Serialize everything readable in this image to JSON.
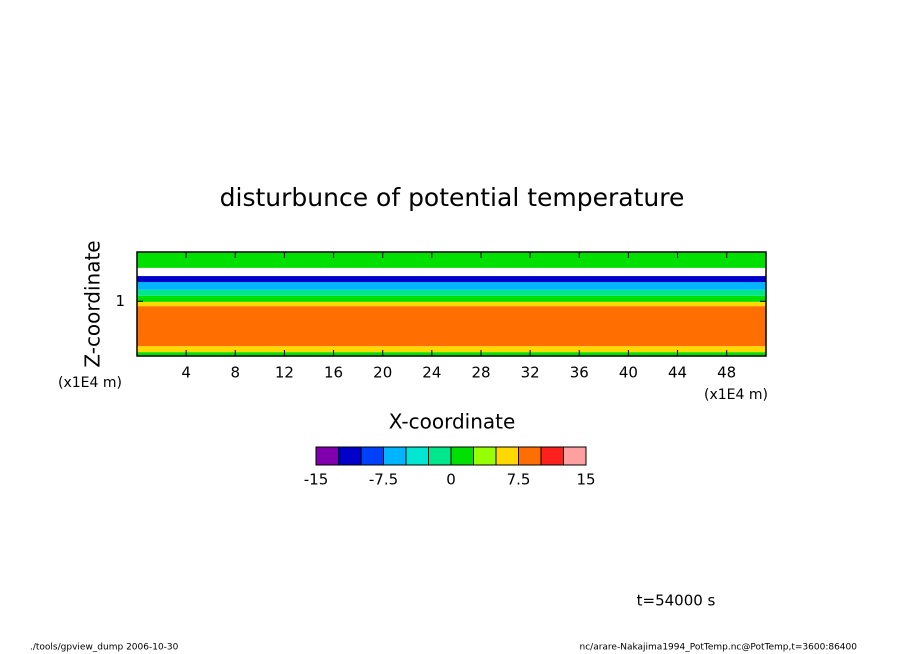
{
  "chart_data": {
    "type": "contour",
    "title": "disturbunce of potential temperature",
    "x_label": "X-coordinate",
    "y_label": "Z-coordinate",
    "x_unit": "(x1E4 m)",
    "y_unit": "(x1E4 m)",
    "xlim": [
      0,
      51.2
    ],
    "xticks": [
      4,
      8,
      12,
      16,
      20,
      24,
      28,
      32,
      36,
      40,
      44,
      48
    ],
    "ylim": [
      0,
      1.9
    ],
    "yticks": [
      1
    ],
    "z": [
      0,
      0.07,
      0.18,
      0.91,
      0.99,
      1.1,
      1.21,
      1.35,
      1.46,
      1.61,
      1.79,
      1.9
    ],
    "values": [
      2,
      5,
      8,
      5,
      2,
      -2,
      -6,
      -12,
      null,
      2,
      1
    ],
    "levels": [
      -15,
      -12.5,
      -10,
      -7.5,
      -5,
      -2.5,
      0,
      2.5,
      5,
      7.5,
      10,
      12.5,
      15
    ],
    "colors": [
      "#8000b0",
      "#0000c8",
      "#0040ff",
      "#00b4ff",
      "#00e6d2",
      "#00e68c",
      "#00e000",
      "#96ff00",
      "#ffd800",
      "#ff6e00",
      "#ff2020",
      "#ffa0a0"
    ],
    "colorbar_ticks": [
      -15,
      -7.5,
      0,
      7.5,
      15
    ],
    "annotation": "t=54000 s",
    "footer_left": "./tools/gpview_dump  2006-10-30",
    "footer_right": "nc/arare-Nakajima1994_PotTemp.nc@PotTemp,t=3600:86400"
  }
}
